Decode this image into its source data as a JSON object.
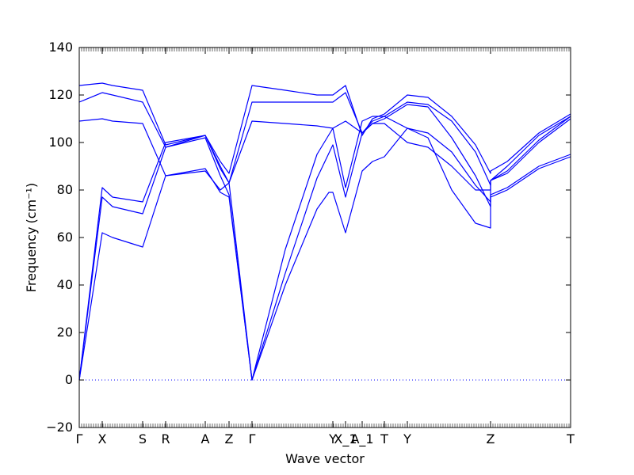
{
  "chart_data": {
    "type": "line",
    "xlabel": "Wave vector",
    "ylabel": "Frequency",
    "ylabel_unit": "(cm⁻¹)",
    "ylim": [
      -20,
      140
    ],
    "y_ticks": [
      -20,
      0,
      20,
      40,
      60,
      80,
      100,
      120,
      140
    ],
    "xlim": [
      0,
      620
    ],
    "grid": false,
    "line_color": "#0000ff",
    "zero_line_color": "#0000ff",
    "x_ticks": [
      {
        "label": "Γ",
        "x": 0
      },
      {
        "label": "X",
        "x": 29
      },
      {
        "label": "S",
        "x": 80
      },
      {
        "label": "R",
        "x": 109
      },
      {
        "label": "A",
        "x": 159
      },
      {
        "label": "Z",
        "x": 189
      },
      {
        "label": "Γ",
        "x": 218
      },
      {
        "label": "Y",
        "x": 320
      },
      {
        "label": "X_1",
        "x": 336
      },
      {
        "label": "A_1",
        "x": 357
      },
      {
        "label": "T",
        "x": 385
      },
      {
        "label": "Y",
        "x": 414
      },
      {
        "label": "Z",
        "x": 519
      },
      {
        "label": "T",
        "x": 620
      }
    ],
    "series": [
      {
        "values": [
          [
            0,
            0
          ],
          [
            29,
            62
          ],
          [
            42,
            60
          ],
          [
            80,
            56
          ],
          [
            109,
            86
          ],
          [
            159,
            89
          ],
          [
            178,
            79
          ],
          [
            189,
            77
          ],
          [
            218,
            0
          ],
          [
            260,
            40
          ],
          [
            300,
            72
          ],
          [
            315,
            79
          ],
          [
            320,
            79
          ],
          [
            336,
            62
          ],
          [
            357,
            88
          ],
          [
            370,
            92
          ],
          [
            385,
            94
          ],
          [
            414,
            106
          ],
          [
            440,
            102
          ],
          [
            470,
            80
          ],
          [
            500,
            66
          ],
          [
            519,
            64
          ],
          [
            519,
            77
          ],
          [
            540,
            80
          ],
          [
            580,
            89
          ],
          [
            620,
            94
          ]
        ]
      },
      {
        "values": [
          [
            0,
            0
          ],
          [
            29,
            77
          ],
          [
            42,
            73
          ],
          [
            80,
            70
          ],
          [
            109,
            98
          ],
          [
            159,
            102
          ],
          [
            178,
            86
          ],
          [
            189,
            78
          ],
          [
            218,
            0
          ],
          [
            260,
            45
          ],
          [
            300,
            85
          ],
          [
            320,
            99
          ],
          [
            336,
            77
          ],
          [
            357,
            104
          ],
          [
            370,
            108
          ],
          [
            385,
            110
          ],
          [
            414,
            116
          ],
          [
            440,
            115
          ],
          [
            470,
            102
          ],
          [
            500,
            86
          ],
          [
            519,
            73
          ],
          [
            519,
            78
          ],
          [
            540,
            81
          ],
          [
            580,
            90
          ],
          [
            620,
            95
          ]
        ]
      },
      {
        "values": [
          [
            0,
            0
          ],
          [
            29,
            81
          ],
          [
            42,
            77
          ],
          [
            80,
            75
          ],
          [
            109,
            100
          ],
          [
            159,
            103
          ],
          [
            178,
            89
          ],
          [
            189,
            83
          ],
          [
            218,
            0
          ],
          [
            260,
            55
          ],
          [
            300,
            95
          ],
          [
            320,
            106
          ],
          [
            336,
            81
          ],
          [
            357,
            109
          ],
          [
            370,
            111
          ],
          [
            385,
            111
          ],
          [
            414,
            106
          ],
          [
            440,
            104
          ],
          [
            470,
            96
          ],
          [
            500,
            82
          ],
          [
            519,
            75
          ],
          [
            519,
            84
          ],
          [
            540,
            87
          ],
          [
            580,
            100
          ],
          [
            620,
            110
          ]
        ]
      },
      {
        "values": [
          [
            0,
            109
          ],
          [
            29,
            110
          ],
          [
            42,
            109
          ],
          [
            80,
            108
          ],
          [
            109,
            86
          ],
          [
            159,
            88
          ],
          [
            178,
            80
          ],
          [
            189,
            83
          ],
          [
            218,
            109
          ],
          [
            260,
            108
          ],
          [
            300,
            107
          ],
          [
            320,
            106
          ],
          [
            336,
            109
          ],
          [
            357,
            104
          ],
          [
            370,
            108
          ],
          [
            385,
            108
          ],
          [
            414,
            100
          ],
          [
            440,
            98
          ],
          [
            470,
            90
          ],
          [
            500,
            80
          ],
          [
            519,
            80
          ],
          [
            519,
            84
          ],
          [
            540,
            88
          ],
          [
            580,
            101
          ],
          [
            620,
            111
          ]
        ]
      },
      {
        "values": [
          [
            0,
            117
          ],
          [
            29,
            121
          ],
          [
            42,
            120
          ],
          [
            80,
            117
          ],
          [
            109,
            98
          ],
          [
            159,
            103
          ],
          [
            178,
            90
          ],
          [
            189,
            83
          ],
          [
            218,
            117
          ],
          [
            260,
            117
          ],
          [
            300,
            117
          ],
          [
            320,
            117
          ],
          [
            336,
            121
          ],
          [
            357,
            104
          ],
          [
            370,
            109
          ],
          [
            385,
            111
          ],
          [
            414,
            117
          ],
          [
            440,
            116
          ],
          [
            470,
            109
          ],
          [
            500,
            96
          ],
          [
            519,
            82
          ],
          [
            519,
            84
          ],
          [
            540,
            90
          ],
          [
            580,
            103
          ],
          [
            620,
            111
          ]
        ]
      },
      {
        "values": [
          [
            0,
            124
          ],
          [
            29,
            125
          ],
          [
            42,
            124
          ],
          [
            80,
            122
          ],
          [
            109,
            99
          ],
          [
            159,
            103
          ],
          [
            178,
            92
          ],
          [
            189,
            87
          ],
          [
            218,
            124
          ],
          [
            260,
            122
          ],
          [
            300,
            120
          ],
          [
            320,
            120
          ],
          [
            336,
            124
          ],
          [
            357,
            103
          ],
          [
            370,
            110
          ],
          [
            385,
            112
          ],
          [
            414,
            120
          ],
          [
            440,
            119
          ],
          [
            470,
            111
          ],
          [
            500,
            99
          ],
          [
            519,
            87
          ],
          [
            519,
            88
          ],
          [
            540,
            92
          ],
          [
            580,
            104
          ],
          [
            620,
            112
          ]
        ]
      }
    ]
  }
}
